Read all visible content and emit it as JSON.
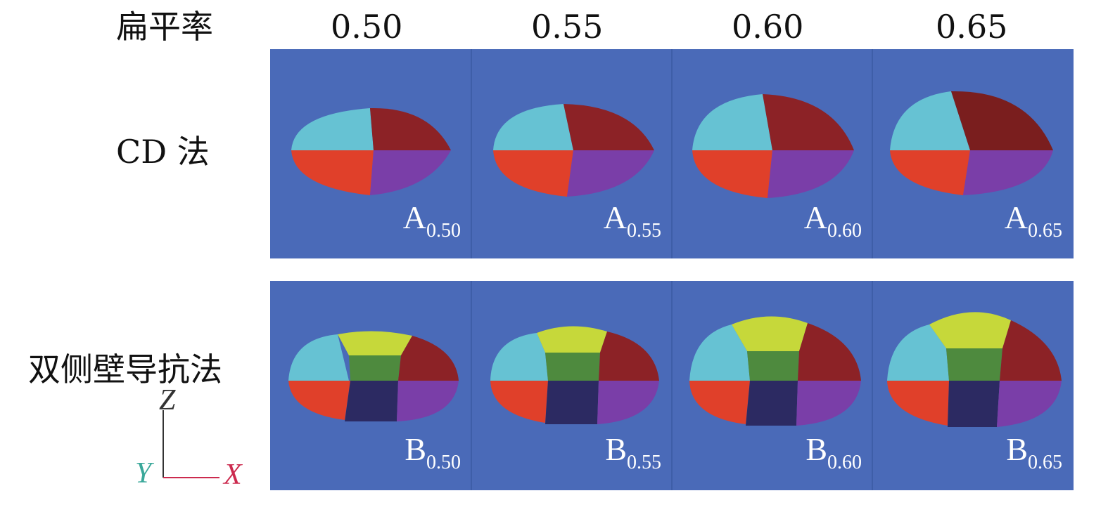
{
  "header": {
    "label": "扁平率",
    "values": [
      "0.50",
      "0.55",
      "0.60",
      "0.65"
    ]
  },
  "rows": [
    {
      "label": "CD 法",
      "prefix": "A",
      "subs": [
        "0.50",
        "0.55",
        "0.60",
        "0.65"
      ]
    },
    {
      "label": "双侧壁导抗法",
      "prefix": "B",
      "subs": [
        "0.50",
        "0.55",
        "0.60",
        "0.65"
      ]
    }
  ],
  "axes": {
    "z": "Z",
    "y": "Y",
    "x": "X"
  },
  "colors": {
    "background": "#4a6ab8",
    "cyan": "#66c2d3",
    "dark_red": "#8c2226",
    "red": "#e0402a",
    "purple": "#7a3ea8",
    "yellow_green": "#c6d83a",
    "green": "#4e8a3e",
    "navy": "#2c2a62",
    "axis_z_color": "#333333",
    "axis_y_color": "#3aa89a",
    "axis_x_color": "#cc2a4e"
  }
}
